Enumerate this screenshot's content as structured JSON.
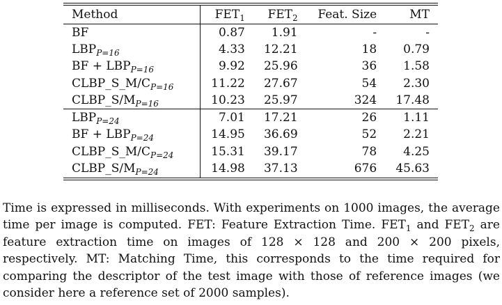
{
  "table": {
    "headers": {
      "method": "Method",
      "fet1": "FET",
      "fet1_sub": "1",
      "fet2": "FET",
      "fet2_sub": "2",
      "feat_size": "Feat. Size",
      "mt": "MT"
    },
    "groups": [
      {
        "rows": [
          {
            "method": "BF",
            "method_sub": "",
            "fet1": "0.87",
            "fet2": "1.91",
            "feat_size": "-",
            "mt": "-"
          },
          {
            "method": "LBP",
            "method_sub": "P=16",
            "fet1": "4.33",
            "fet2": "12.21",
            "feat_size": "18",
            "mt": "0.79"
          },
          {
            "method": "BF + LBP",
            "method_sub": "P=16",
            "fet1": "9.92",
            "fet2": "25.96",
            "feat_size": "36",
            "mt": "1.58"
          },
          {
            "method": "CLBP_S_M/C",
            "method_sub": "P=16",
            "fet1": "11.22",
            "fet2": "27.67",
            "feat_size": "54",
            "mt": "2.30"
          },
          {
            "method": "CLBP_S/M",
            "method_sub": "P=16",
            "fet1": "10.23",
            "fet2": "25.97",
            "feat_size": "324",
            "mt": "17.48"
          }
        ]
      },
      {
        "rows": [
          {
            "method": "LBP",
            "method_sub": "P=24",
            "fet1": "7.01",
            "fet2": "17.21",
            "feat_size": "26",
            "mt": "1.11"
          },
          {
            "method": "BF + LBP",
            "method_sub": "P=24",
            "fet1": "14.95",
            "fet2": "36.69",
            "feat_size": "52",
            "mt": "2.21"
          },
          {
            "method": "CLBP_S_M/C",
            "method_sub": "P=24",
            "fet1": "15.31",
            "fet2": "39.17",
            "feat_size": "78",
            "mt": "4.25"
          },
          {
            "method": "CLBP_S/M",
            "method_sub": "P=24",
            "fet1": "14.98",
            "fet2": "37.13",
            "feat_size": "676",
            "mt": "45.63"
          }
        ]
      }
    ]
  },
  "caption": {
    "part1": "Time is expressed in milliseconds. With experiments on 1000 images, the average time per image is computed. FET: Feature Extraction Time. FET",
    "sub1": "1",
    "part2": " and FET",
    "sub2": "2",
    "part3": " are feature extraction time on images of 128 × 128 and 200 × 200 pixels, respectively. MT: Matching Time, this corresponds to the time required for comparing the descriptor of the test image with those of reference images (we consider here a reference set of 2000 samples)."
  }
}
